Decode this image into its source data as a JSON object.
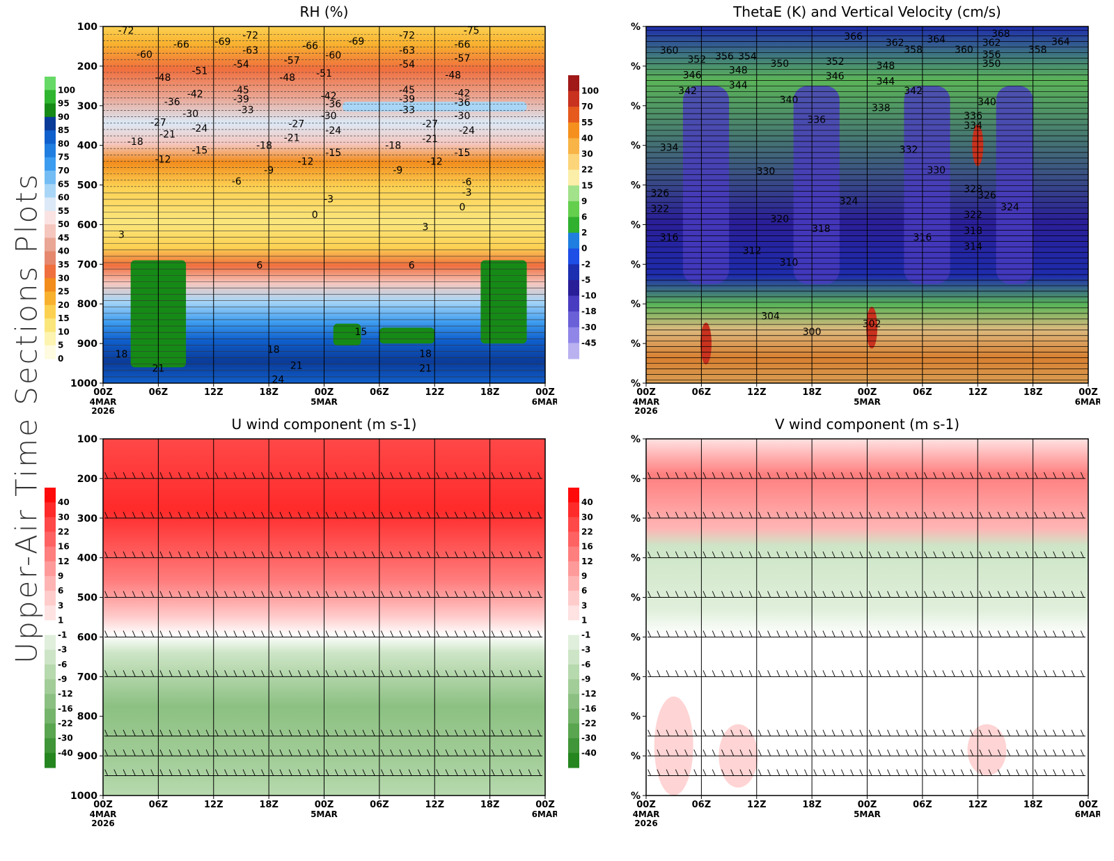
{
  "figure": {
    "side_title": "Upper-Air Time Sections Plots"
  },
  "colors": {
    "grid": "#000000"
  },
  "chart_data": [
    {
      "id": "rh",
      "type": "heatmap",
      "title": "RH (%)",
      "xlabel": "",
      "ylabel": "",
      "x_range_hours": [
        0,
        48
      ],
      "x_ticks": [
        "00Z",
        "06Z",
        "12Z",
        "18Z",
        "00Z",
        "06Z",
        "12Z",
        "18Z",
        "00Z"
      ],
      "x_dates": [
        {
          "hour": 0,
          "lines": [
            "4MAR",
            "2026"
          ]
        },
        {
          "hour": 24,
          "lines": [
            "5MAR"
          ]
        },
        {
          "hour": 48,
          "lines": [
            "6MAR"
          ]
        }
      ],
      "y_range": [
        1000,
        100
      ],
      "y_ticks": [
        "100",
        "200",
        "300",
        "400",
        "500",
        "600",
        "700",
        "800",
        "900",
        "1000"
      ],
      "colorbar_levels": [
        "100",
        "95",
        "90",
        "85",
        "80",
        "75",
        "70",
        "65",
        "60",
        "55",
        "50",
        "45",
        "40",
        "35",
        "30",
        "25",
        "20",
        "15",
        "10",
        "5",
        "0"
      ],
      "colorbar_colors": [
        "#66d966",
        "#2fb52f",
        "#168a16",
        "#0a3b99",
        "#0f5fcc",
        "#1f7ee0",
        "#3c9cf0",
        "#74bdf4",
        "#a9d6f6",
        "#dce9f7",
        "#fbe3e3",
        "#f5c6bd",
        "#eaa694",
        "#e5886d",
        "#f06f3e",
        "#f28c1c",
        "#f8b12e",
        "#fcd152",
        "#fbe67c",
        "#fcf4b0",
        "#fffbe0"
      ],
      "contour_labels": [
        {
          "text": "-72",
          "h": 2.5,
          "p": 110
        },
        {
          "text": "-60",
          "h": 4.5,
          "p": 170
        },
        {
          "text": "-66",
          "h": 8.5,
          "p": 145
        },
        {
          "text": "-69",
          "h": 13,
          "p": 138
        },
        {
          "text": "-72",
          "h": 16,
          "p": 122
        },
        {
          "text": "-63",
          "h": 16,
          "p": 160
        },
        {
          "text": "-54",
          "h": 15,
          "p": 195
        },
        {
          "text": "-57",
          "h": 20.5,
          "p": 185
        },
        {
          "text": "-66",
          "h": 22.5,
          "p": 148
        },
        {
          "text": "-60",
          "h": 25,
          "p": 172
        },
        {
          "text": "-69",
          "h": 27.5,
          "p": 137
        },
        {
          "text": "-72",
          "h": 33,
          "p": 122
        },
        {
          "text": "-63",
          "h": 33,
          "p": 160
        },
        {
          "text": "-54",
          "h": 33,
          "p": 195
        },
        {
          "text": "-66",
          "h": 39,
          "p": 145
        },
        {
          "text": "-57",
          "h": 39,
          "p": 180
        },
        {
          "text": "-75",
          "h": 40,
          "p": 110
        },
        {
          "text": "-48",
          "h": 6.5,
          "p": 228
        },
        {
          "text": "-51",
          "h": 10.5,
          "p": 212
        },
        {
          "text": "-48",
          "h": 20,
          "p": 228
        },
        {
          "text": "-51",
          "h": 24,
          "p": 218
        },
        {
          "text": "-48",
          "h": 38,
          "p": 222
        },
        {
          "text": "-42",
          "h": 10,
          "p": 270
        },
        {
          "text": "-36",
          "h": 7.5,
          "p": 290
        },
        {
          "text": "-45",
          "h": 15,
          "p": 260
        },
        {
          "text": "-39",
          "h": 15,
          "p": 283
        },
        {
          "text": "-33",
          "h": 15.5,
          "p": 310
        },
        {
          "text": "-42",
          "h": 24.5,
          "p": 275
        },
        {
          "text": "-36",
          "h": 25,
          "p": 295
        },
        {
          "text": "-30",
          "h": 24.5,
          "p": 325
        },
        {
          "text": "-45",
          "h": 33,
          "p": 260
        },
        {
          "text": "-39",
          "h": 33,
          "p": 283
        },
        {
          "text": "-33",
          "h": 33,
          "p": 310
        },
        {
          "text": "-42",
          "h": 39,
          "p": 268
        },
        {
          "text": "-36",
          "h": 39,
          "p": 292
        },
        {
          "text": "-30",
          "h": 39,
          "p": 325
        },
        {
          "text": "-30",
          "h": 9.5,
          "p": 320
        },
        {
          "text": "-27",
          "h": 6,
          "p": 342
        },
        {
          "text": "-24",
          "h": 10.5,
          "p": 357
        },
        {
          "text": "-21",
          "h": 7,
          "p": 372
        },
        {
          "text": "-18",
          "h": 3.5,
          "p": 390
        },
        {
          "text": "-27",
          "h": 21,
          "p": 345
        },
        {
          "text": "-24",
          "h": 25,
          "p": 362
        },
        {
          "text": "-21",
          "h": 20.5,
          "p": 380
        },
        {
          "text": "-18",
          "h": 17.5,
          "p": 400
        },
        {
          "text": "-15",
          "h": 10.5,
          "p": 412
        },
        {
          "text": "-12",
          "h": 6.5,
          "p": 435
        },
        {
          "text": "-15",
          "h": 25,
          "p": 418
        },
        {
          "text": "-12",
          "h": 22,
          "p": 440
        },
        {
          "text": "-9",
          "h": 18,
          "p": 462
        },
        {
          "text": "-6",
          "h": 14.5,
          "p": 490
        },
        {
          "text": "-3",
          "h": 24.5,
          "p": 535
        },
        {
          "text": "0",
          "h": 23,
          "p": 575
        },
        {
          "text": "-27",
          "h": 35.5,
          "p": 345
        },
        {
          "text": "-24",
          "h": 39.5,
          "p": 362
        },
        {
          "text": "-21",
          "h": 35.5,
          "p": 383
        },
        {
          "text": "-18",
          "h": 31.5,
          "p": 400
        },
        {
          "text": "-15",
          "h": 39,
          "p": 418
        },
        {
          "text": "-12",
          "h": 36,
          "p": 440
        },
        {
          "text": "-9",
          "h": 32,
          "p": 462
        },
        {
          "text": "-6",
          "h": 39.5,
          "p": 492
        },
        {
          "text": "-3",
          "h": 39.5,
          "p": 518
        },
        {
          "text": "0",
          "h": 39,
          "p": 555
        },
        {
          "text": "3",
          "h": 2,
          "p": 625
        },
        {
          "text": "3",
          "h": 35,
          "p": 605
        },
        {
          "text": "6",
          "h": 17,
          "p": 702
        },
        {
          "text": "6",
          "h": 33.5,
          "p": 702
        },
        {
          "text": "15",
          "h": 28,
          "p": 870
        },
        {
          "text": "18",
          "h": 2,
          "p": 926
        },
        {
          "text": "21",
          "h": 6,
          "p": 962
        },
        {
          "text": "18",
          "h": 18.5,
          "p": 915
        },
        {
          "text": "21",
          "h": 21,
          "p": 955
        },
        {
          "text": "24",
          "h": 19,
          "p": 990
        },
        {
          "text": "18",
          "h": 35,
          "p": 925
        },
        {
          "text": "21",
          "h": 35,
          "p": 962
        }
      ]
    },
    {
      "id": "thetae",
      "type": "heatmap",
      "title": "ThetaE (K) and Vertical Velocity (cm/s)",
      "x_range_hours": [
        0,
        48
      ],
      "x_ticks": [
        "00Z",
        "06Z",
        "12Z",
        "18Z",
        "00Z",
        "06Z",
        "12Z",
        "18Z",
        "00Z"
      ],
      "x_dates": [
        {
          "hour": 0,
          "lines": [
            "4MAR",
            "2026"
          ]
        },
        {
          "hour": 24,
          "lines": [
            "5MAR"
          ]
        },
        {
          "hour": 48,
          "lines": [
            "6MAR"
          ]
        }
      ],
      "y_range": [
        1000,
        100
      ],
      "y_ticks": [
        "%",
        "%",
        "%",
        "%",
        "%",
        "%",
        "%",
        "%",
        "%",
        "%"
      ],
      "colorbar_levels": [
        "100",
        "70",
        "55",
        "40",
        "30",
        "22",
        "15",
        "9",
        "6",
        "2",
        "0",
        "-2",
        "-5",
        "-10",
        "-18",
        "-30",
        "-45"
      ],
      "colorbar_colors": [
        "#a01818",
        "#c8321e",
        "#e65a1e",
        "#f5901e",
        "#f8b446",
        "#fcd57a",
        "#fbeea8",
        "#a2e28a",
        "#63cf4d",
        "#2fb02f",
        "#1f7ee0",
        "#1d4ee6",
        "#1c2fb0",
        "#2a1e98",
        "#4a3cc0",
        "#6a60d8",
        "#9086e8",
        "#b9b1f0"
      ],
      "contour_labels": [
        {
          "text": "368",
          "h": 38.5,
          "p": 118
        },
        {
          "text": "366",
          "h": 22.5,
          "p": 125
        },
        {
          "text": "362",
          "h": 27,
          "p": 140
        },
        {
          "text": "358",
          "h": 29,
          "p": 158
        },
        {
          "text": "364",
          "h": 31.5,
          "p": 132
        },
        {
          "text": "360",
          "h": 34.5,
          "p": 158
        },
        {
          "text": "362",
          "h": 37.5,
          "p": 140
        },
        {
          "text": "356",
          "h": 37.5,
          "p": 170
        },
        {
          "text": "358",
          "h": 42.5,
          "p": 158
        },
        {
          "text": "364",
          "h": 45,
          "p": 138
        },
        {
          "text": "350",
          "h": 37.5,
          "p": 193
        },
        {
          "text": "360",
          "h": 2.5,
          "p": 160
        },
        {
          "text": "352",
          "h": 5.5,
          "p": 183
        },
        {
          "text": "356",
          "h": 8.5,
          "p": 175
        },
        {
          "text": "354",
          "h": 11,
          "p": 175
        },
        {
          "text": "350",
          "h": 14.5,
          "p": 193
        },
        {
          "text": "352",
          "h": 20.5,
          "p": 188
        },
        {
          "text": "348",
          "h": 26,
          "p": 198
        },
        {
          "text": "346",
          "h": 5,
          "p": 222
        },
        {
          "text": "348",
          "h": 10,
          "p": 210
        },
        {
          "text": "346",
          "h": 20.5,
          "p": 225
        },
        {
          "text": "344",
          "h": 26,
          "p": 238
        },
        {
          "text": "342",
          "h": 4.5,
          "p": 262
        },
        {
          "text": "344",
          "h": 10,
          "p": 248
        },
        {
          "text": "340",
          "h": 15.5,
          "p": 285
        },
        {
          "text": "342",
          "h": 29,
          "p": 262
        },
        {
          "text": "338",
          "h": 25.5,
          "p": 305
        },
        {
          "text": "340",
          "h": 37,
          "p": 290
        },
        {
          "text": "336",
          "h": 35.5,
          "p": 325
        },
        {
          "text": "334",
          "h": 35.5,
          "p": 350
        },
        {
          "text": "336",
          "h": 18.5,
          "p": 335
        },
        {
          "text": "334",
          "h": 2.5,
          "p": 405
        },
        {
          "text": "332",
          "h": 28.5,
          "p": 410
        },
        {
          "text": "330",
          "h": 13,
          "p": 465
        },
        {
          "text": "330",
          "h": 31.5,
          "p": 462
        },
        {
          "text": "328",
          "h": 35.5,
          "p": 510
        },
        {
          "text": "326",
          "h": 1.5,
          "p": 520
        },
        {
          "text": "326",
          "h": 37,
          "p": 525
        },
        {
          "text": "324",
          "h": 22,
          "p": 540
        },
        {
          "text": "324",
          "h": 39.5,
          "p": 555
        },
        {
          "text": "322",
          "h": 1.5,
          "p": 560
        },
        {
          "text": "322",
          "h": 35.5,
          "p": 575
        },
        {
          "text": "320",
          "h": 14.5,
          "p": 585
        },
        {
          "text": "318",
          "h": 19,
          "p": 610
        },
        {
          "text": "318",
          "h": 35.5,
          "p": 615
        },
        {
          "text": "316",
          "h": 2.5,
          "p": 632
        },
        {
          "text": "316",
          "h": 30,
          "p": 632
        },
        {
          "text": "314",
          "h": 35.5,
          "p": 655
        },
        {
          "text": "312",
          "h": 11.5,
          "p": 665
        },
        {
          "text": "310",
          "h": 15.5,
          "p": 695
        },
        {
          "text": "304",
          "h": 13.5,
          "p": 830
        },
        {
          "text": "302",
          "h": 24.5,
          "p": 850
        },
        {
          "text": "300",
          "h": 18,
          "p": 870
        }
      ]
    },
    {
      "id": "u",
      "type": "heatmap",
      "title": "U wind component (m s-1)",
      "x_range_hours": [
        0,
        48
      ],
      "x_ticks": [
        "00Z",
        "06Z",
        "12Z",
        "18Z",
        "00Z",
        "06Z",
        "12Z",
        "18Z",
        "00Z"
      ],
      "x_dates": [
        {
          "hour": 0,
          "lines": [
            "4MAR",
            "2026"
          ]
        },
        {
          "hour": 24,
          "lines": [
            "5MAR"
          ]
        },
        {
          "hour": 48,
          "lines": [
            "6MAR"
          ]
        }
      ],
      "y_range": [
        1000,
        100
      ],
      "y_ticks": [
        "100",
        "200",
        "300",
        "400",
        "500",
        "600",
        "700",
        "800",
        "900",
        "1000"
      ],
      "colorbar_levels": [
        "40",
        "30",
        "22",
        "16",
        "12",
        "9",
        "6",
        "3",
        "1",
        "-1",
        "-3",
        "-6",
        "-9",
        "-12",
        "-16",
        "-22",
        "-30",
        "-40"
      ],
      "colorbar_colors": [
        "#ff0a0a",
        "#ff2a2a",
        "#ff4848",
        "#ff6262",
        "#ff7e7e",
        "#ff9a9a",
        "#ffb4b4",
        "#ffcccc",
        "#ffe2e2",
        "#ffffff",
        "#e0efdb",
        "#cde5c6",
        "#b7d9ae",
        "#a2cd98",
        "#8cc082",
        "#75b46b",
        "#5aa54f",
        "#3f9537",
        "#25861f"
      ],
      "barb_levels": [
        200,
        300,
        400,
        500,
        600,
        700,
        850,
        900,
        950
      ]
    },
    {
      "id": "v",
      "type": "heatmap",
      "title": "V wind component (m s-1)",
      "x_range_hours": [
        0,
        48
      ],
      "x_ticks": [
        "00Z",
        "06Z",
        "12Z",
        "18Z",
        "00Z",
        "06Z",
        "12Z",
        "18Z",
        "00Z"
      ],
      "x_dates": [
        {
          "hour": 0,
          "lines": [
            "4MAR",
            "2026"
          ]
        },
        {
          "hour": 24,
          "lines": [
            "5MAR"
          ]
        },
        {
          "hour": 48,
          "lines": [
            "6MAR"
          ]
        }
      ],
      "y_range": [
        1000,
        100
      ],
      "y_ticks": [
        "%",
        "%",
        "%",
        "%",
        "%",
        "%",
        "%",
        "%",
        "%",
        "%"
      ],
      "colorbar_levels": [
        "40",
        "30",
        "22",
        "16",
        "12",
        "9",
        "6",
        "3",
        "1",
        "-1",
        "-3",
        "-6",
        "-9",
        "-12",
        "-16",
        "-22",
        "-30",
        "-40"
      ],
      "colorbar_colors": [
        "#ff0a0a",
        "#ff2a2a",
        "#ff4848",
        "#ff6262",
        "#ff7e7e",
        "#ff9a9a",
        "#ffb4b4",
        "#ffcccc",
        "#ffe2e2",
        "#ffffff",
        "#e0efdb",
        "#cde5c6",
        "#b7d9ae",
        "#a2cd98",
        "#8cc082",
        "#75b46b",
        "#5aa54f",
        "#3f9537",
        "#25861f"
      ],
      "barb_levels": [
        200,
        300,
        400,
        500,
        600,
        700,
        850,
        900,
        950
      ]
    }
  ]
}
